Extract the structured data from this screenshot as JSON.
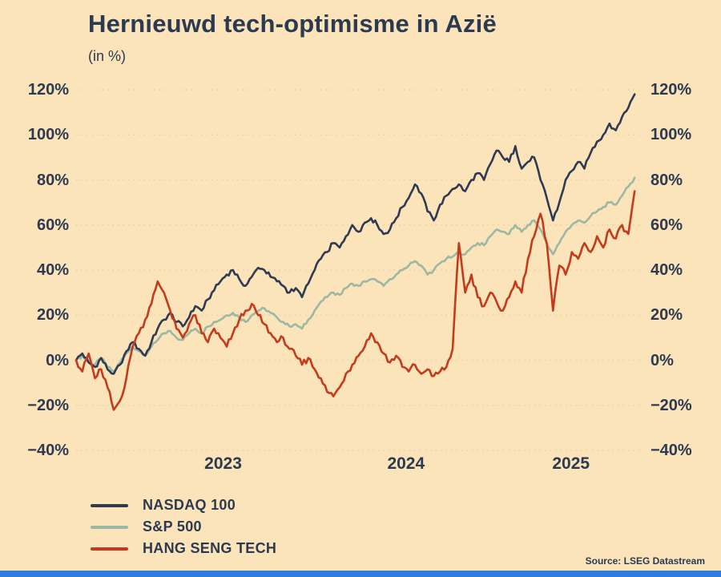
{
  "source": "Source: LSEG Datastream",
  "colors": {
    "background": "#fbe3ba",
    "text": "#2c3a51",
    "grid": "#eccf9f",
    "footer_bar": "#2e7ce0"
  },
  "chart_data": {
    "type": "line",
    "title": "Hernieuwd tech-optimisme in Azië",
    "subtitle": "(in %)",
    "xlabel": "",
    "ylabel": "",
    "ylim": [
      -40,
      120
    ],
    "y_ticks": [
      120,
      100,
      80,
      60,
      40,
      20,
      0,
      -20,
      -40
    ],
    "x_range": [
      2022.6,
      2025.75
    ],
    "x_start": 2022.6,
    "x_step": 0.035,
    "x_ticks": [
      {
        "label": "2023",
        "t": 2023.42
      },
      {
        "label": "2024",
        "t": 2024.44
      },
      {
        "label": "2025",
        "t": 2025.36
      }
    ],
    "grid": true,
    "legend_position": "bottom-left",
    "series": [
      {
        "name": "S&P 500",
        "color": "#9cb8a4",
        "values": [
          0,
          2,
          -1,
          -2,
          1,
          -3,
          -5,
          -1,
          3,
          6,
          4,
          2,
          6,
          9,
          12,
          13,
          10,
          9,
          12,
          14,
          12,
          15,
          17,
          18,
          20,
          21,
          19,
          17,
          20,
          22,
          23,
          21,
          19,
          17,
          15,
          16,
          14,
          18,
          22,
          26,
          28,
          30,
          29,
          32,
          34,
          33,
          35,
          36,
          35,
          33,
          36,
          38,
          40,
          42,
          44,
          42,
          38,
          40,
          43,
          45,
          46,
          48,
          47,
          50,
          52,
          51,
          55,
          58,
          57,
          56,
          60,
          57,
          60,
          62,
          58,
          52,
          47,
          52,
          57,
          60,
          62,
          61,
          64,
          66,
          68,
          70,
          69,
          73,
          77,
          81
        ]
      },
      {
        "name": "NASDAQ 100",
        "color": "#2f3a52",
        "values": [
          0,
          3,
          -1,
          -3,
          1,
          -4,
          -6,
          -2,
          4,
          8,
          5,
          2,
          8,
          14,
          18,
          21,
          17,
          15,
          19,
          24,
          22,
          27,
          31,
          35,
          38,
          40,
          36,
          33,
          37,
          41,
          40,
          37,
          35,
          33,
          30,
          32,
          28,
          34,
          40,
          45,
          48,
          52,
          50,
          55,
          60,
          57,
          61,
          63,
          60,
          56,
          58,
          63,
          68,
          72,
          78,
          74,
          66,
          62,
          69,
          73,
          76,
          78,
          75,
          80,
          83,
          80,
          87,
          93,
          90,
          88,
          95,
          85,
          88,
          90,
          80,
          72,
          62,
          70,
          80,
          84,
          88,
          85,
          92,
          97,
          100,
          105,
          102,
          108,
          112,
          118
        ]
      },
      {
        "name": "HANG SENG TECH",
        "color": "#c43a1d",
        "values": [
          0,
          -5,
          3,
          -8,
          -4,
          -12,
          -22,
          -18,
          -8,
          6,
          12,
          18,
          25,
          35,
          30,
          22,
          14,
          10,
          16,
          20,
          12,
          8,
          14,
          10,
          6,
          12,
          18,
          22,
          25,
          20,
          16,
          12,
          8,
          10,
          5,
          2,
          -2,
          1,
          -4,
          -8,
          -14,
          -16,
          -12,
          -6,
          -2,
          2,
          6,
          12,
          8,
          3,
          -1,
          2,
          -3,
          -5,
          -2,
          -6,
          -4,
          -7,
          -5,
          -3,
          5,
          52,
          30,
          38,
          28,
          24,
          30,
          26,
          22,
          28,
          35,
          30,
          45,
          55,
          65,
          52,
          22,
          42,
          38,
          48,
          45,
          52,
          48,
          55,
          50,
          58,
          54,
          60,
          56,
          75
        ]
      }
    ],
    "legend_order": [
      "NASDAQ 100",
      "S&P 500",
      "HANG SENG TECH"
    ]
  }
}
